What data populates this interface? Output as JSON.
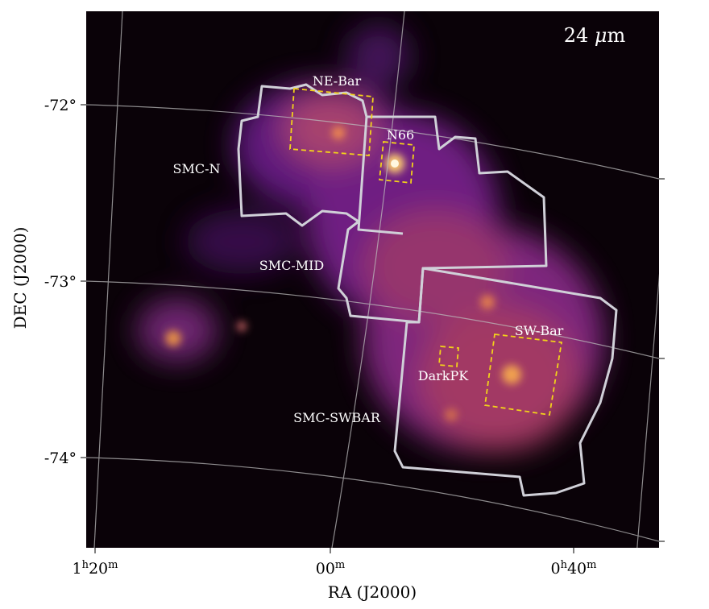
{
  "panel_label": {
    "text": "24 ",
    "unit_italic": "μ",
    "unit_rest": "m"
  },
  "axes": {
    "x_label": "RA (J2000)",
    "y_label": "DEC (J2000)",
    "x_ticks": [
      [
        {
          "text": "1"
        },
        {
          "text": "h",
          "sup": true
        },
        {
          "text": "20"
        },
        {
          "text": "m",
          "sup": true
        }
      ],
      [
        {
          "text": "00"
        },
        {
          "text": "m",
          "sup": true
        }
      ],
      [
        {
          "text": "0"
        },
        {
          "text": "h",
          "sup": true
        },
        {
          "text": "40"
        },
        {
          "text": "m",
          "sup": true
        }
      ]
    ],
    "y_ticks": [
      "-72°",
      "-73°",
      "-74°"
    ]
  },
  "regions": [
    "NE-Bar",
    "N66",
    "SMC-N",
    "SMC-MID",
    "SW-Bar",
    "DarkPK",
    "SMC-SWBAR"
  ]
}
